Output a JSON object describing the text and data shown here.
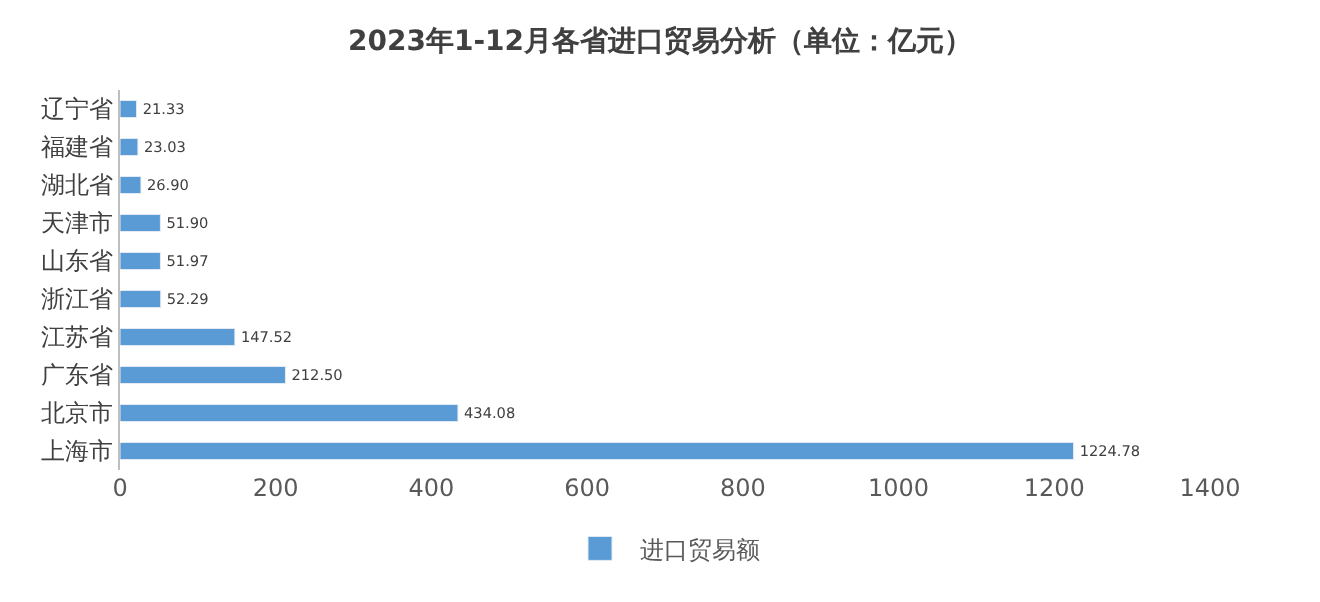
{
  "chart_data": {
    "type": "bar",
    "orientation": "horizontal",
    "title": "2023年1-12月各省进口贸易分析（单位：亿元）",
    "categories": [
      "辽宁省",
      "福建省",
      "湖北省",
      "天津市",
      "山东省",
      "浙江省",
      "江苏省",
      "广东省",
      "北京市",
      "上海市"
    ],
    "series": [
      {
        "name": "进口贸易额",
        "color": "#5b9bd5",
        "values": [
          21.33,
          23.03,
          26.9,
          51.9,
          51.97,
          52.29,
          147.52,
          212.5,
          434.08,
          1224.78
        ],
        "value_labels": [
          "21.33",
          "23.03",
          "26.90",
          "51.90",
          "51.97",
          "52.29",
          "147.52",
          "212.50",
          "434.08",
          "1224.78"
        ]
      }
    ],
    "xlim": [
      0,
      1400
    ],
    "xticks": [
      0,
      200,
      400,
      600,
      800,
      1000,
      1200,
      1400
    ],
    "grid": false,
    "legend": "bottom"
  }
}
